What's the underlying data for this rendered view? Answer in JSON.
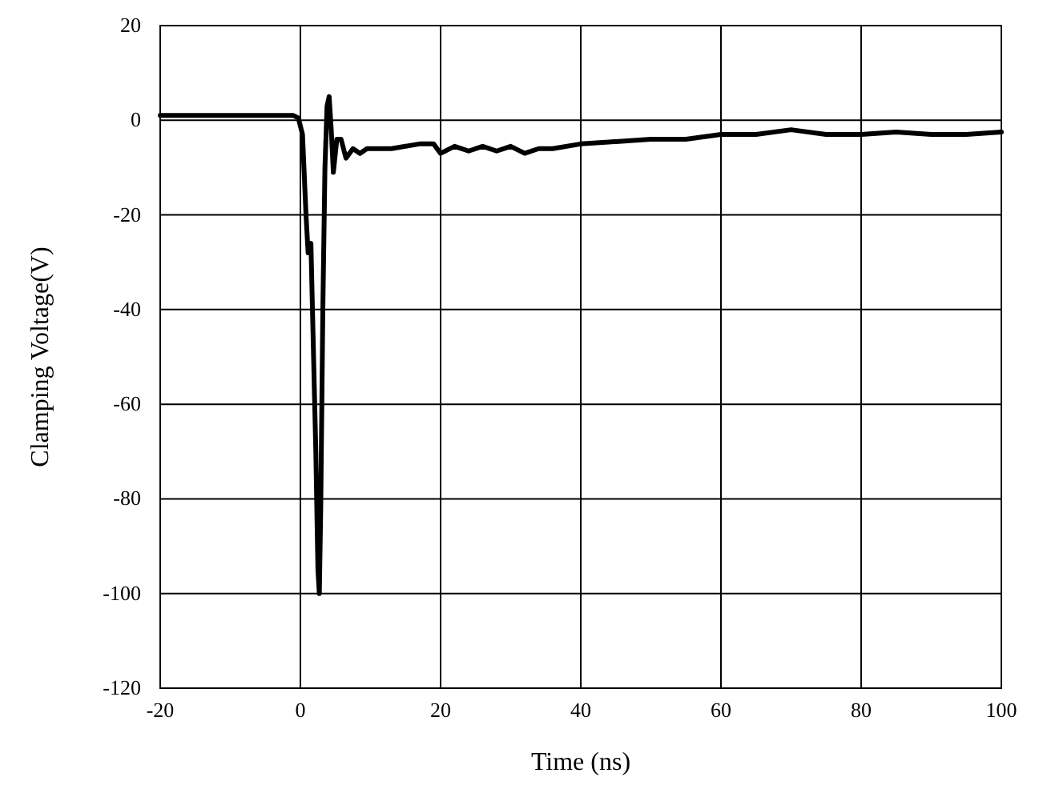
{
  "chart_data": {
    "type": "line",
    "xlabel": "Time (ns)",
    "ylabel": "Clamping Voltage(V)",
    "x": [
      -20,
      -10,
      -1,
      -0.3,
      0.3,
      0.8,
      1.1,
      1.5,
      1.8,
      2.2,
      2.5,
      2.7,
      2.9,
      3.2,
      3.5,
      3.8,
      4.1,
      4.4,
      4.7,
      5.2,
      5.8,
      6.5,
      7.5,
      8.5,
      9.5,
      11,
      13,
      15,
      17,
      19,
      20,
      22,
      24,
      26,
      28,
      30,
      32,
      34,
      36,
      40,
      45,
      50,
      55,
      60,
      65,
      70,
      75,
      80,
      85,
      90,
      95,
      100
    ],
    "series": [
      {
        "color": "#000000",
        "values": [
          1,
          1,
          1,
          0.5,
          -3,
          -20,
          -28,
          -26,
          -45,
          -70,
          -95,
          -100,
          -82,
          -40,
          -10,
          3,
          5,
          -2,
          -11,
          -4,
          -4,
          -8,
          -6,
          -7,
          -6,
          -6,
          -6,
          -5.5,
          -5,
          -5,
          -7,
          -5.5,
          -6.5,
          -5.5,
          -6.5,
          -5.5,
          -7,
          -6,
          -6,
          -5,
          -4.5,
          -4,
          -4,
          -3,
          -3,
          -2,
          -3,
          -3,
          -2.5,
          -3,
          -3,
          -2.5
        ]
      }
    ],
    "xlim": [
      -20,
      100
    ],
    "ylim": [
      -120,
      20
    ],
    "xticks": [
      -20,
      0,
      20,
      40,
      60,
      80,
      100
    ],
    "yticks": [
      -120,
      -100,
      -80,
      -60,
      -40,
      -20,
      0,
      20
    ],
    "grid": true
  }
}
